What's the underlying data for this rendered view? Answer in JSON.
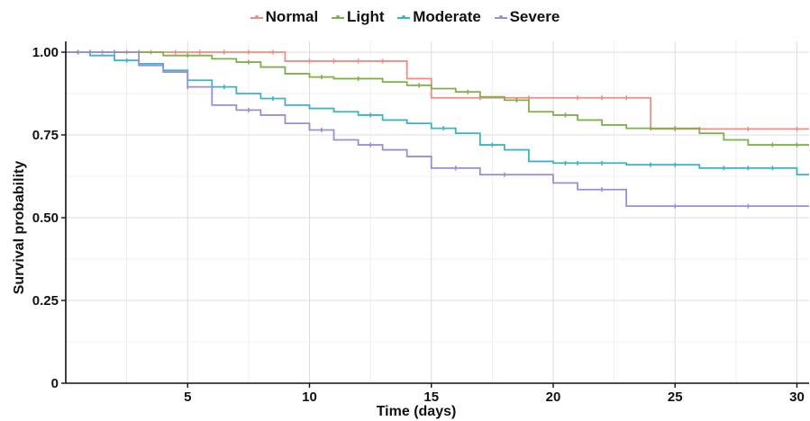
{
  "chart_data": {
    "type": "line",
    "title": "",
    "xlabel": "Time (days)",
    "ylabel": "Survival probability",
    "xlim": [
      0,
      30.5
    ],
    "ylim": [
      0,
      1.0
    ],
    "x_ticks": [
      5,
      10,
      15,
      20,
      25,
      30
    ],
    "y_ticks": [
      0,
      0.25,
      0.5,
      0.75,
      1.0
    ],
    "y_tick_labels": [
      "0",
      "0.25",
      "0.50",
      "0.75",
      "1.00"
    ],
    "grid": true,
    "legend_position": "top",
    "step": true,
    "series": [
      {
        "name": "Normal",
        "color": "#f08c82",
        "steps": [
          [
            0,
            1.0
          ],
          [
            9,
            0.973
          ],
          [
            14,
            0.92
          ],
          [
            15,
            0.862
          ],
          [
            24,
            0.768
          ]
        ],
        "x_end": 30.5,
        "censor_x": [
          0.5,
          1.5,
          2.5,
          3.5,
          4.5,
          5.5,
          6.5,
          7.5,
          8.5,
          10,
          11,
          12,
          13,
          17,
          19,
          21,
          22,
          23,
          25,
          26,
          28,
          30
        ]
      },
      {
        "name": "Light",
        "color": "#7fb04b",
        "steps": [
          [
            0,
            1.0
          ],
          [
            4,
            0.99
          ],
          [
            6,
            0.98
          ],
          [
            7,
            0.97
          ],
          [
            8,
            0.955
          ],
          [
            9,
            0.935
          ],
          [
            10,
            0.925
          ],
          [
            11,
            0.92
          ],
          [
            13,
            0.91
          ],
          [
            14,
            0.9
          ],
          [
            15,
            0.89
          ],
          [
            16,
            0.88
          ],
          [
            17,
            0.865
          ],
          [
            18,
            0.855
          ],
          [
            19,
            0.82
          ],
          [
            20,
            0.81
          ],
          [
            21,
            0.795
          ],
          [
            22,
            0.78
          ],
          [
            23,
            0.77
          ],
          [
            26,
            0.755
          ],
          [
            27,
            0.735
          ],
          [
            28,
            0.72
          ]
        ],
        "x_end": 30.5,
        "censor_x": [
          1,
          2,
          3,
          5,
          7.5,
          10.5,
          12,
          14.5,
          16.5,
          18.5,
          20.5,
          24,
          25,
          29,
          30
        ]
      },
      {
        "name": "Moderate",
        "color": "#3db4c4",
        "steps": [
          [
            0,
            1.0
          ],
          [
            1,
            0.99
          ],
          [
            2,
            0.975
          ],
          [
            3,
            0.965
          ],
          [
            4,
            0.945
          ],
          [
            5,
            0.915
          ],
          [
            6,
            0.895
          ],
          [
            7,
            0.875
          ],
          [
            8,
            0.86
          ],
          [
            9,
            0.84
          ],
          [
            10,
            0.83
          ],
          [
            11,
            0.82
          ],
          [
            12,
            0.81
          ],
          [
            13,
            0.795
          ],
          [
            14,
            0.785
          ],
          [
            15,
            0.77
          ],
          [
            16,
            0.755
          ],
          [
            17,
            0.72
          ],
          [
            18,
            0.705
          ],
          [
            19,
            0.67
          ],
          [
            20,
            0.665
          ],
          [
            23,
            0.66
          ],
          [
            26,
            0.65
          ],
          [
            30,
            0.63
          ]
        ],
        "x_end": 30.5,
        "censor_x": [
          0.5,
          2.5,
          6.5,
          8.5,
          12.5,
          15.5,
          17.5,
          20.5,
          21,
          22,
          24,
          25,
          27,
          28,
          29
        ]
      },
      {
        "name": "Severe",
        "color": "#9d8dd4",
        "steps": [
          [
            0,
            1.0
          ],
          [
            3,
            0.96
          ],
          [
            4,
            0.94
          ],
          [
            5,
            0.895
          ],
          [
            6,
            0.84
          ],
          [
            7,
            0.825
          ],
          [
            8,
            0.81
          ],
          [
            9,
            0.785
          ],
          [
            10,
            0.765
          ],
          [
            11,
            0.735
          ],
          [
            12,
            0.72
          ],
          [
            13,
            0.705
          ],
          [
            14,
            0.685
          ],
          [
            15,
            0.65
          ],
          [
            17,
            0.63
          ],
          [
            20,
            0.605
          ],
          [
            21,
            0.585
          ],
          [
            23,
            0.535
          ]
        ],
        "x_end": 30.5,
        "censor_x": [
          1,
          2,
          5,
          7.5,
          10.5,
          12.5,
          16,
          18,
          22,
          25,
          28
        ]
      }
    ]
  }
}
